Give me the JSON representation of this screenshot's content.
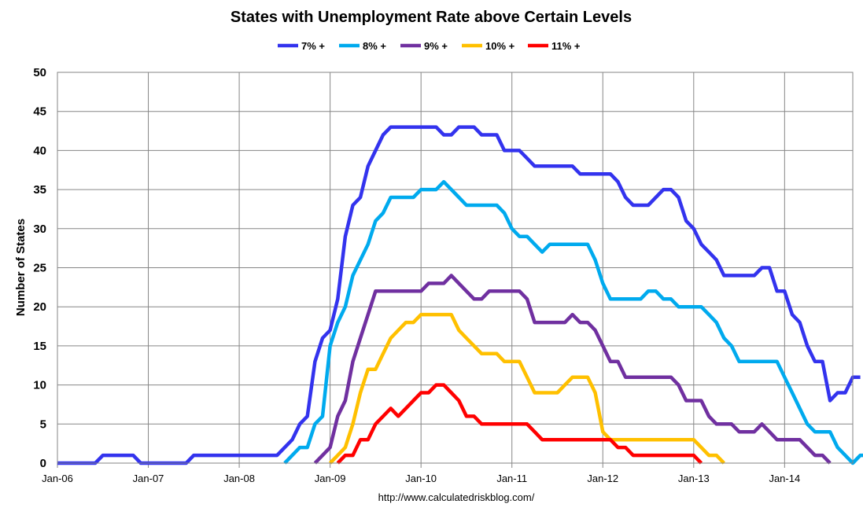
{
  "chart_data": {
    "type": "line",
    "title": "States with Unemployment Rate above Certain Levels",
    "ylabel": "Number of States",
    "xlabel": "",
    "source": "http://www.calculatedriskblog.com/",
    "x_tick_labels": [
      "Jan-06",
      "Jan-07",
      "Jan-08",
      "Jan-09",
      "Jan-10",
      "Jan-11",
      "Jan-12",
      "Jan-13",
      "Jan-14"
    ],
    "ylim": [
      0,
      50
    ],
    "y_ticks": [
      0,
      5,
      10,
      15,
      20,
      25,
      30,
      35,
      40,
      45,
      50
    ],
    "grid": true,
    "legend_position": "top",
    "x_start": "Jan-06",
    "series": [
      {
        "name": "7% +",
        "color": "#3333ee",
        "values": [
          0,
          0,
          0,
          0,
          0,
          0,
          1,
          1,
          1,
          1,
          1,
          0,
          0,
          0,
          0,
          0,
          0,
          0,
          1,
          1,
          1,
          1,
          1,
          1,
          1,
          1,
          1,
          1,
          1,
          1,
          2,
          3,
          5,
          6,
          13,
          16,
          17,
          21,
          29,
          33,
          34,
          38,
          40,
          42,
          43,
          43,
          43,
          43,
          43,
          43,
          43,
          42,
          42,
          43,
          43,
          43,
          42,
          42,
          42,
          40,
          40,
          40,
          39,
          38,
          38,
          38,
          38,
          38,
          38,
          37,
          37,
          37,
          37,
          37,
          36,
          34,
          33,
          33,
          33,
          34,
          35,
          35,
          34,
          31,
          30,
          28,
          27,
          26,
          24,
          24,
          24,
          24,
          24,
          25,
          25,
          22,
          22,
          19,
          18,
          15,
          13,
          13,
          8,
          9,
          9,
          11,
          11
        ]
      },
      {
        "name": "8% +",
        "color": "#00aaee",
        "values": [
          null,
          null,
          null,
          null,
          null,
          null,
          null,
          null,
          null,
          null,
          null,
          null,
          null,
          null,
          null,
          null,
          null,
          null,
          null,
          null,
          null,
          null,
          null,
          null,
          null,
          null,
          null,
          null,
          null,
          null,
          0,
          1,
          2,
          2,
          5,
          6,
          15,
          18,
          20,
          24,
          26,
          28,
          31,
          32,
          34,
          34,
          34,
          34,
          35,
          35,
          35,
          36,
          35,
          34,
          33,
          33,
          33,
          33,
          33,
          32,
          30,
          29,
          29,
          28,
          27,
          28,
          28,
          28,
          28,
          28,
          28,
          26,
          23,
          21,
          21,
          21,
          21,
          21,
          22,
          22,
          21,
          21,
          20,
          20,
          20,
          20,
          19,
          18,
          16,
          15,
          13,
          13,
          13,
          13,
          13,
          13,
          11,
          9,
          7,
          5,
          4,
          4,
          4,
          2,
          1,
          0,
          1,
          1
        ]
      },
      {
        "name": "9% +",
        "color": "#7030a0",
        "values": [
          null,
          null,
          null,
          null,
          null,
          null,
          null,
          null,
          null,
          null,
          null,
          null,
          null,
          null,
          null,
          null,
          null,
          null,
          null,
          null,
          null,
          null,
          null,
          null,
          null,
          null,
          null,
          null,
          null,
          null,
          null,
          null,
          null,
          null,
          0,
          1,
          2,
          6,
          8,
          13,
          16,
          19,
          22,
          22,
          22,
          22,
          22,
          22,
          22,
          23,
          23,
          23,
          24,
          23,
          22,
          21,
          21,
          22,
          22,
          22,
          22,
          22,
          21,
          18,
          18,
          18,
          18,
          18,
          19,
          18,
          18,
          17,
          15,
          13,
          13,
          11,
          11,
          11,
          11,
          11,
          11,
          11,
          10,
          8,
          8,
          8,
          6,
          5,
          5,
          5,
          4,
          4,
          4,
          5,
          4,
          3,
          3,
          3,
          3,
          2,
          1,
          1,
          0
        ]
      },
      {
        "name": "10% +",
        "color": "#ffc000",
        "values": [
          null,
          null,
          null,
          null,
          null,
          null,
          null,
          null,
          null,
          null,
          null,
          null,
          null,
          null,
          null,
          null,
          null,
          null,
          null,
          null,
          null,
          null,
          null,
          null,
          null,
          null,
          null,
          null,
          null,
          null,
          null,
          null,
          null,
          null,
          null,
          null,
          0,
          1,
          2,
          5,
          9,
          12,
          12,
          14,
          16,
          17,
          18,
          18,
          19,
          19,
          19,
          19,
          19,
          17,
          16,
          15,
          14,
          14,
          14,
          13,
          13,
          13,
          11,
          9,
          9,
          9,
          9,
          10,
          11,
          11,
          11,
          9,
          4,
          3,
          3,
          3,
          3,
          3,
          3,
          3,
          3,
          3,
          3,
          3,
          3,
          2,
          1,
          1,
          0
        ]
      },
      {
        "name": "11% +",
        "color": "#ff0000",
        "values": [
          null,
          null,
          null,
          null,
          null,
          null,
          null,
          null,
          null,
          null,
          null,
          null,
          null,
          null,
          null,
          null,
          null,
          null,
          null,
          null,
          null,
          null,
          null,
          null,
          null,
          null,
          null,
          null,
          null,
          null,
          null,
          null,
          null,
          null,
          null,
          null,
          null,
          0,
          1,
          1,
          3,
          3,
          5,
          6,
          7,
          6,
          7,
          8,
          9,
          9,
          10,
          10,
          9,
          8,
          6,
          6,
          5,
          5,
          5,
          5,
          5,
          5,
          5,
          4,
          3,
          3,
          3,
          3,
          3,
          3,
          3,
          3,
          3,
          3,
          2,
          2,
          1,
          1,
          1,
          1,
          1,
          1,
          1,
          1,
          1,
          0
        ]
      }
    ]
  }
}
